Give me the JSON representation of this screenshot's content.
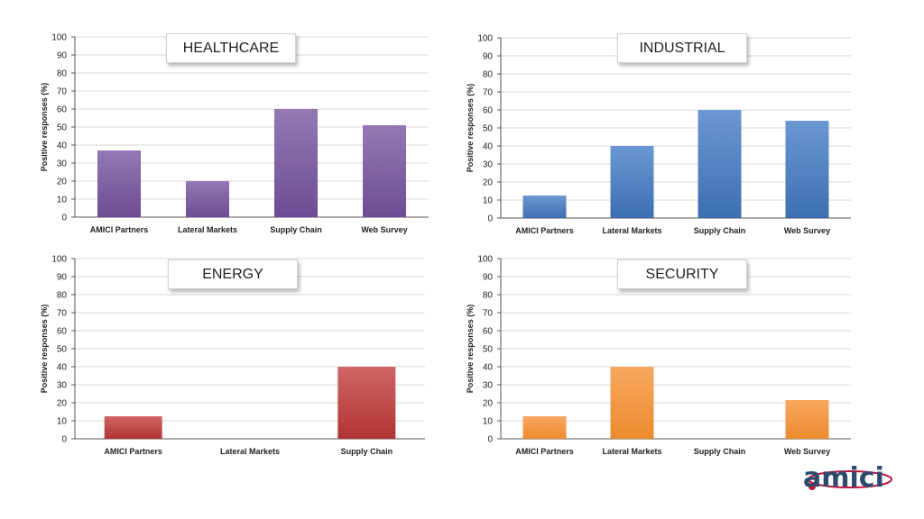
{
  "colors": {
    "healthcare": [
      "#9478b4",
      "#6e4c95"
    ],
    "industrial": [
      "#6a98d3",
      "#3c6fb1"
    ],
    "energy": [
      "#d06565",
      "#b03434"
    ],
    "security": [
      "#f8a860",
      "#ed8b2e"
    ],
    "grid": "#d9d9d9",
    "axis": "#555555"
  },
  "chart_data": [
    {
      "type": "bar",
      "title": "HEALTHCARE",
      "categories": [
        "AMICI Partners",
        "Lateral Markets",
        "Supply Chain",
        "Web Survey"
      ],
      "values": [
        37,
        20,
        60,
        51
      ],
      "xlabel": "",
      "ylabel": "Positive responses (%)",
      "ylim": [
        0,
        100
      ],
      "yticks": [
        "0",
        "10",
        "20",
        "30",
        "40",
        "50",
        "60",
        "70",
        "80",
        "90",
        "100"
      ],
      "grid": true
    },
    {
      "type": "bar",
      "title": "INDUSTRIAL",
      "categories": [
        "AMICI Partners",
        "Lateral Markets",
        "Supply Chain",
        "Web Survey"
      ],
      "values": [
        12.5,
        40,
        60,
        54
      ],
      "xlabel": "",
      "ylabel": "Positive responses (%)",
      "ylim": [
        0,
        100
      ],
      "yticks": [
        "0",
        "10",
        "20",
        "30",
        "40",
        "50",
        "60",
        "70",
        "80",
        "90",
        "100"
      ],
      "grid": true
    },
    {
      "type": "bar",
      "title": "ENERGY",
      "categories": [
        "AMICI Partners",
        "Lateral Markets",
        "Supply Chain"
      ],
      "values": [
        12.5,
        0,
        40
      ],
      "xlabel": "",
      "ylabel": "Positive responses (%)",
      "ylim": [
        0,
        100
      ],
      "yticks": [
        "0",
        "10",
        "20",
        "30",
        "40",
        "50",
        "60",
        "70",
        "80",
        "90",
        "100"
      ],
      "grid": true
    },
    {
      "type": "bar",
      "title": "SECURITY",
      "categories": [
        "AMICI Partners",
        "Lateral Markets",
        "Supply Chain",
        "Web Survey"
      ],
      "values": [
        12.5,
        40,
        0,
        21.5
      ],
      "xlabel": "",
      "ylabel": "Positive responses (%)",
      "ylim": [
        0,
        100
      ],
      "yticks": [
        "0",
        "10",
        "20",
        "30",
        "40",
        "50",
        "60",
        "70",
        "80",
        "90",
        "100"
      ],
      "grid": true
    }
  ],
  "logo": {
    "text": "amici"
  }
}
